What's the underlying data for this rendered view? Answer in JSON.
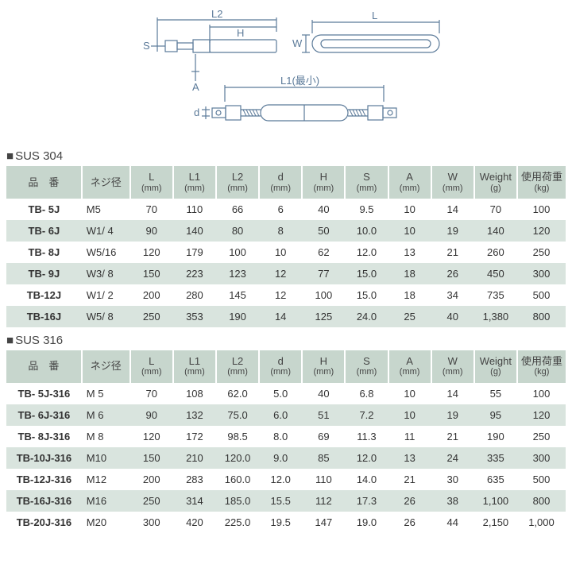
{
  "diagram": {
    "labels": {
      "L2": "L2",
      "H": "H",
      "S": "S",
      "A": "A",
      "L": "L",
      "W": "W",
      "L1": "L1(最小)",
      "d": "d"
    },
    "stroke": "#5b7a99",
    "text_color": "#5b7a99",
    "linewidth": 1.2
  },
  "tables": [
    {
      "title": "SUS 304",
      "columns": [
        {
          "key": "part",
          "label": "品　番",
          "unit": ""
        },
        {
          "key": "thread",
          "label": "ネジ径",
          "unit": ""
        },
        {
          "key": "L",
          "label": "L",
          "unit": "(mm)"
        },
        {
          "key": "L1",
          "label": "L1",
          "unit": "(mm)"
        },
        {
          "key": "L2",
          "label": "L2",
          "unit": "(mm)"
        },
        {
          "key": "d",
          "label": "d",
          "unit": "(mm)"
        },
        {
          "key": "H",
          "label": "H",
          "unit": "(mm)"
        },
        {
          "key": "S",
          "label": "S",
          "unit": "(mm)"
        },
        {
          "key": "A",
          "label": "A",
          "unit": "(mm)"
        },
        {
          "key": "W",
          "label": "W",
          "unit": "(mm)"
        },
        {
          "key": "wt",
          "label": "Weight",
          "unit": "(g)"
        },
        {
          "key": "load",
          "label": "使用荷重",
          "unit": "(kg)"
        }
      ],
      "rows": [
        [
          "TB-  5J",
          "M5",
          "70",
          "110",
          "66",
          "6",
          "40",
          "9.5",
          "10",
          "14",
          "70",
          "100"
        ],
        [
          "TB-  6J",
          "W1/ 4",
          "90",
          "140",
          "80",
          "8",
          "50",
          "10.0",
          "10",
          "19",
          "140",
          "120"
        ],
        [
          "TB-  8J",
          "W5/16",
          "120",
          "179",
          "100",
          "10",
          "62",
          "12.0",
          "13",
          "21",
          "260",
          "250"
        ],
        [
          "TB-  9J",
          "W3/ 8",
          "150",
          "223",
          "123",
          "12",
          "77",
          "15.0",
          "18",
          "26",
          "450",
          "300"
        ],
        [
          "TB-12J",
          "W1/ 2",
          "200",
          "280",
          "145",
          "12",
          "100",
          "15.0",
          "18",
          "34",
          "735",
          "500"
        ],
        [
          "TB-16J",
          "W5/ 8",
          "250",
          "353",
          "190",
          "14",
          "125",
          "24.0",
          "25",
          "40",
          "1,380",
          "800"
        ]
      ]
    },
    {
      "title": "SUS 316",
      "columns": [
        {
          "key": "part",
          "label": "品　番",
          "unit": ""
        },
        {
          "key": "thread",
          "label": "ネジ径",
          "unit": ""
        },
        {
          "key": "L",
          "label": "L",
          "unit": "(mm)"
        },
        {
          "key": "L1",
          "label": "L1",
          "unit": "(mm)"
        },
        {
          "key": "L2",
          "label": "L2",
          "unit": "(mm)"
        },
        {
          "key": "d",
          "label": "d",
          "unit": "(mm)"
        },
        {
          "key": "H",
          "label": "H",
          "unit": "(mm)"
        },
        {
          "key": "S",
          "label": "S",
          "unit": "(mm)"
        },
        {
          "key": "A",
          "label": "A",
          "unit": "(mm)"
        },
        {
          "key": "W",
          "label": "W",
          "unit": "(mm)"
        },
        {
          "key": "wt",
          "label": "Weight",
          "unit": "(g)"
        },
        {
          "key": "load",
          "label": "使用荷重",
          "unit": "(kg)"
        }
      ],
      "rows": [
        [
          "TB-  5J-316",
          "M 5",
          "70",
          "108",
          "62.0",
          "5.0",
          "40",
          "6.8",
          "10",
          "14",
          "55",
          "100"
        ],
        [
          "TB-  6J-316",
          "M 6",
          "90",
          "132",
          "75.0",
          "6.0",
          "51",
          "7.2",
          "10",
          "19",
          "95",
          "120"
        ],
        [
          "TB-  8J-316",
          "M 8",
          "120",
          "172",
          "98.5",
          "8.0",
          "69",
          "11.3",
          "11",
          "21",
          "190",
          "250"
        ],
        [
          "TB-10J-316",
          "M10",
          "150",
          "210",
          "120.0",
          "9.0",
          "85",
          "12.0",
          "13",
          "24",
          "335",
          "300"
        ],
        [
          "TB-12J-316",
          "M12",
          "200",
          "283",
          "160.0",
          "12.0",
          "110",
          "14.0",
          "21",
          "30",
          "635",
          "500"
        ],
        [
          "TB-16J-316",
          "M16",
          "250",
          "314",
          "185.0",
          "15.5",
          "112",
          "17.3",
          "26",
          "38",
          "1,100",
          "800"
        ],
        [
          "TB-20J-316",
          "M20",
          "300",
          "420",
          "225.0",
          "19.5",
          "147",
          "19.0",
          "26",
          "44",
          "2,150",
          "1,000"
        ]
      ]
    }
  ],
  "style": {
    "header_bg": "#c7d6cd",
    "row_even_bg": "#d9e4de",
    "row_odd_bg": "#ffffff",
    "text_color": "#333333",
    "font_size_body": 13,
    "font_size_unit": 11
  }
}
